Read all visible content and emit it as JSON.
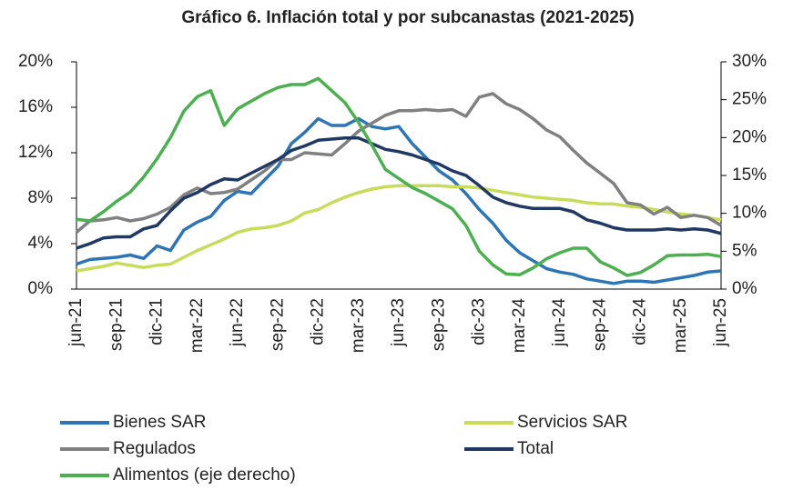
{
  "chart_data": {
    "type": "line",
    "title": "Gráfico 6. Inflación total y por subcanastas (2021-2025)",
    "categories": [
      "jun-21",
      null,
      null,
      "sep-21",
      null,
      null,
      "dic-21",
      null,
      null,
      "mar-22",
      null,
      null,
      "jun-22",
      null,
      null,
      "sep-22",
      null,
      null,
      "dic-22",
      null,
      null,
      "mar-23",
      null,
      null,
      "jun-23",
      null,
      null,
      "sep-23",
      null,
      null,
      "dic-23",
      null,
      null,
      "mar-24",
      null,
      null,
      "jun-24",
      null,
      null,
      "sep-24",
      null,
      null,
      "dic-24",
      null,
      null,
      "mar-25",
      null,
      null,
      "jun-25"
    ],
    "series": [
      {
        "name": "Bienes SAR",
        "color": "#2e75b6",
        "values": [
          2.2,
          2.6,
          2.7,
          2.8,
          3.0,
          2.7,
          3.8,
          3.4,
          5.2,
          5.9,
          6.4,
          7.8,
          8.6,
          8.4,
          9.6,
          10.8,
          12.8,
          13.8,
          15.0,
          14.4,
          14.4,
          15.0,
          14.3,
          14.1,
          14.3,
          12.8,
          11.6,
          10.4,
          9.6,
          8.4,
          7.0,
          5.8,
          4.3,
          3.2,
          2.5,
          1.8,
          1.5,
          1.3,
          0.9,
          0.7,
          0.5,
          0.7,
          0.7,
          0.6,
          0.8,
          1.0,
          1.2,
          1.5,
          1.6
        ]
      },
      {
        "name": "Servicios SAR",
        "color": "#c8dc5a",
        "values": [
          1.6,
          1.8,
          2.0,
          2.3,
          2.1,
          1.9,
          2.1,
          2.2,
          2.8,
          3.4,
          3.9,
          4.4,
          5.0,
          5.3,
          5.4,
          5.6,
          6.0,
          6.7,
          7.0,
          7.6,
          8.1,
          8.5,
          8.8,
          9.0,
          9.1,
          9.1,
          9.1,
          9.1,
          9.0,
          9.0,
          8.9,
          8.7,
          8.5,
          8.3,
          8.1,
          8.0,
          7.9,
          7.8,
          7.6,
          7.5,
          7.5,
          7.3,
          7.2,
          7.0,
          6.8,
          6.6,
          6.5,
          6.3,
          6.1
        ]
      },
      {
        "name": "Regulados",
        "color": "#808080",
        "values": [
          5.0,
          6.0,
          6.1,
          6.3,
          6.0,
          6.2,
          6.6,
          7.2,
          8.3,
          8.9,
          8.4,
          8.5,
          8.8,
          9.6,
          10.4,
          11.4,
          11.4,
          12.0,
          11.9,
          11.8,
          12.8,
          13.9,
          14.6,
          15.3,
          15.7,
          15.7,
          15.8,
          15.7,
          15.8,
          15.2,
          16.9,
          17.2,
          16.3,
          15.8,
          15.0,
          14.0,
          13.4,
          12.2,
          11.1,
          10.2,
          9.3,
          7.6,
          7.4,
          6.6,
          7.2,
          6.3,
          6.5,
          6.3,
          5.6
        ]
      },
      {
        "name": "Total",
        "color": "#1f3864",
        "values": [
          3.6,
          4.0,
          4.5,
          4.6,
          4.6,
          5.3,
          5.6,
          6.9,
          8.0,
          8.5,
          9.2,
          9.7,
          9.6,
          10.2,
          10.8,
          11.4,
          12.2,
          12.6,
          13.1,
          13.2,
          13.3,
          13.3,
          12.8,
          12.3,
          12.1,
          11.8,
          11.4,
          11.0,
          10.4,
          10.0,
          9.1,
          8.1,
          7.6,
          7.3,
          7.1,
          7.1,
          7.1,
          6.8,
          6.1,
          5.8,
          5.4,
          5.2,
          5.2,
          5.2,
          5.3,
          5.2,
          5.3,
          5.2,
          4.9
        ]
      },
      {
        "name": "Alimentos (eje derecho)",
        "color": "#4caf50",
        "axis": "y2",
        "values": [
          9.2,
          9.0,
          10.2,
          11.6,
          12.8,
          14.8,
          17.2,
          20.0,
          23.5,
          25.4,
          26.2,
          21.6,
          23.8,
          24.8,
          25.8,
          26.6,
          27.0,
          27.0,
          27.8,
          26.2,
          24.6,
          22.0,
          19.0,
          15.8,
          14.6,
          13.4,
          12.6,
          11.6,
          10.6,
          8.4,
          5.0,
          3.2,
          2.0,
          1.9,
          2.8,
          4.0,
          4.8,
          5.4,
          5.4,
          3.6,
          2.8,
          1.8,
          2.2,
          3.2,
          4.4,
          4.5,
          4.5,
          4.6,
          4.3
        ]
      }
    ],
    "ylim": [
      0,
      20
    ],
    "yticks": [
      {
        "value": 0,
        "label": "0%"
      },
      {
        "value": 4,
        "label": "4%"
      },
      {
        "value": 8,
        "label": "8%"
      },
      {
        "value": 12,
        "label": "12%"
      },
      {
        "value": 16,
        "label": "16%"
      },
      {
        "value": 20,
        "label": "20%"
      }
    ],
    "y2lim": [
      0,
      30
    ],
    "y2ticks": [
      {
        "value": 0,
        "label": "0%"
      },
      {
        "value": 5,
        "label": "5%"
      },
      {
        "value": 10,
        "label": "10%"
      },
      {
        "value": 15,
        "label": "15%"
      },
      {
        "value": 20,
        "label": "20%"
      },
      {
        "value": 25,
        "label": "25%"
      },
      {
        "value": 30,
        "label": "30%"
      }
    ],
    "grid": false,
    "legend": "bottom"
  }
}
